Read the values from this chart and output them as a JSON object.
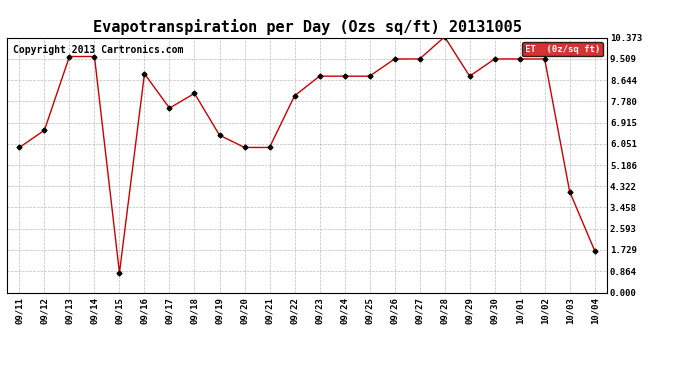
{
  "title": "Evapotranspiration per Day (Ozs sq/ft) 20131005",
  "copyright": "Copyright 2013 Cartronics.com",
  "legend_label": "ET  (0z/sq ft)",
  "x_labels": [
    "09/11",
    "09/12",
    "09/13",
    "09/14",
    "09/15",
    "09/16",
    "09/17",
    "09/18",
    "09/19",
    "09/20",
    "09/21",
    "09/22",
    "09/23",
    "09/24",
    "09/25",
    "09/26",
    "09/27",
    "09/28",
    "09/29",
    "09/30",
    "10/01",
    "10/02",
    "10/03",
    "10/04"
  ],
  "y_values": [
    5.9,
    6.6,
    9.6,
    9.6,
    0.8,
    8.9,
    7.5,
    8.1,
    6.4,
    5.9,
    5.9,
    8.0,
    8.8,
    8.8,
    8.8,
    9.5,
    9.5,
    10.4,
    8.8,
    9.5,
    9.5,
    9.5,
    4.1,
    1.7
  ],
  "y_ticks": [
    0.0,
    0.864,
    1.729,
    2.593,
    3.458,
    4.322,
    5.186,
    6.051,
    6.915,
    7.78,
    8.644,
    9.509,
    10.373
  ],
  "ylim": [
    0.0,
    10.373
  ],
  "line_color": "#cc0000",
  "marker_color": "#000000",
  "bg_color": "#ffffff",
  "grid_color": "#bbbbbb",
  "legend_bg": "#cc0000",
  "legend_text_color": "#ffffff",
  "title_fontsize": 11,
  "copyright_fontsize": 7,
  "tick_fontsize": 6.5,
  "ytick_fontsize": 6.5
}
